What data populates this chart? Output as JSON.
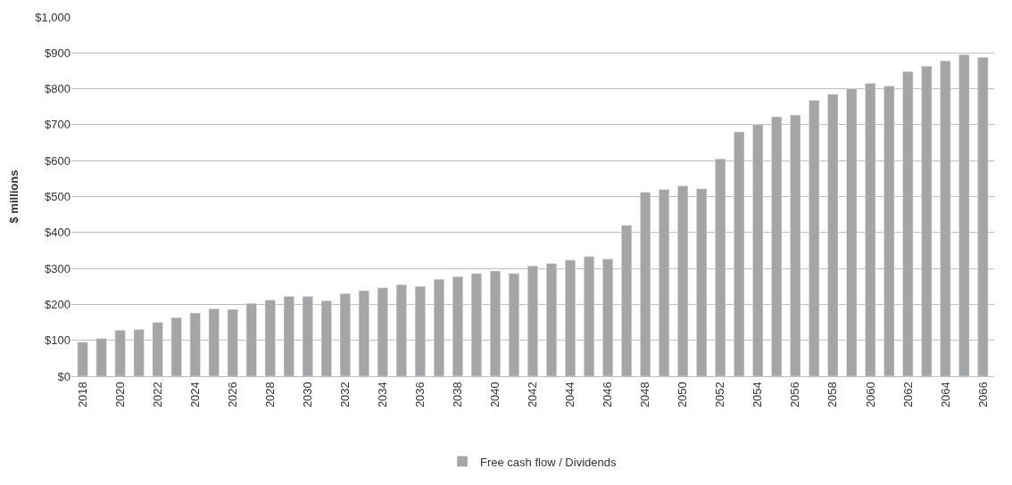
{
  "chart_data": {
    "type": "bar",
    "ylabel": "$ millions",
    "categories": [
      "2018",
      null,
      "2020",
      null,
      "2022",
      null,
      "2024",
      null,
      "2026",
      null,
      "2028",
      null,
      "2030",
      null,
      "2032",
      null,
      "2034",
      null,
      "2036",
      null,
      "2038",
      null,
      "2040",
      null,
      "2042",
      null,
      "2044",
      null,
      "2046",
      null,
      "2048",
      null,
      "2050",
      null,
      "2052",
      null,
      "2054",
      null,
      "2056",
      null,
      "2058",
      null,
      "2060",
      null,
      "2062",
      null,
      "2064",
      null,
      "2066"
    ],
    "series": [
      {
        "name": "Free cash flow / Dividends",
        "color": "#a5a5a5",
        "values": [
          95,
          105,
          128,
          130,
          150,
          163,
          176,
          188,
          186,
          203,
          212,
          222,
          222,
          210,
          230,
          238,
          246,
          255,
          250,
          270,
          277,
          286,
          293,
          286,
          307,
          314,
          323,
          333,
          326,
          420,
          512,
          520,
          530,
          522,
          605,
          680,
          700,
          722,
          727,
          768,
          785,
          800,
          815,
          808,
          848,
          863,
          878,
          895,
          888
        ]
      }
    ],
    "ylim": [
      0,
      1000
    ],
    "yticks": [
      {
        "value": 0,
        "label": "$0"
      },
      {
        "value": 100,
        "label": "$100"
      },
      {
        "value": 200,
        "label": "$200"
      },
      {
        "value": 300,
        "label": "$300"
      },
      {
        "value": 400,
        "label": "$400"
      },
      {
        "value": 500,
        "label": "$500"
      },
      {
        "value": 600,
        "label": "$600"
      },
      {
        "value": 700,
        "label": "$700"
      },
      {
        "value": 800,
        "label": "$800"
      },
      {
        "value": 900,
        "label": "$900"
      },
      {
        "value": 1000,
        "label": "$1,000"
      }
    ],
    "grid": "y",
    "legend": "bottom"
  }
}
